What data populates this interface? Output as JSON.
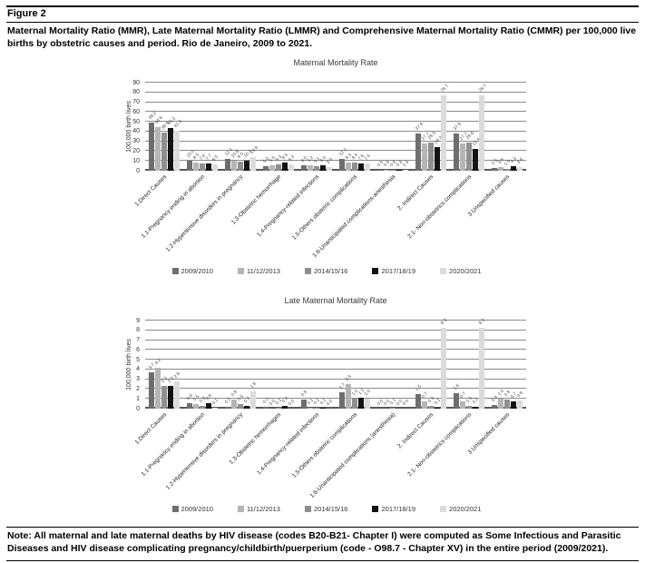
{
  "figure": {
    "label": "Figure 2",
    "caption": "Maternal Mortality Ratio (MMR), Late Maternal Mortality Ratio (LMMR) and Comprehensive Maternal Mortality Ratio (CMMR) per 100,000 live births by obstetric causes and period. Rio de Janeiro, 2009 to 2021.",
    "note": "Note: All maternal and late maternal deaths by HIV disease (codes B20-B21- Chapter I) were computed as Some Infectious and Parasitic Diseases and HIV disease complicating pregnancy/childbirth/puerperium (code - O98.7 - Chapter XV) in the entire period (2009/2021)."
  },
  "chart_data": [
    {
      "type": "bar",
      "title": "Maternal Mortality Rate",
      "ylabel": "100,000 birth lives",
      "ylim": [
        0,
        90
      ],
      "yticks": [
        0,
        10,
        20,
        30,
        40,
        50,
        60,
        70,
        80,
        90
      ],
      "grid": true,
      "legend_position": "bottom",
      "categories": [
        "1.Direct Causes",
        "1.1-Pregnancy ending in abortion",
        "1.2-Hypertensive disorders in pregnancy",
        "1.3-Obstetric hemorrhage",
        "1.4-Pregnancy-related infections",
        "1.5-Others obstetric complications",
        "1.6-Unanticipated complications-anesthesia",
        "2. Indirect Causes",
        "2.1- Non-obstetrics complications",
        "3.Unspecified causes"
      ],
      "series": [
        {
          "name": "2009/2010",
          "color": "#6e6e6e",
          "values": [
            49.2,
            10.0,
            12.1,
            5.0,
            6.0,
            12.1,
            0.5,
            37.8,
            37.8,
            2.5
          ]
        },
        {
          "name": "11/12/2013",
          "color": "#b5b5b5",
          "values": [
            44.6,
            8.5,
            10.6,
            5.5,
            5.2,
            8.3,
            0.9,
            27.7,
            27.7,
            3.6
          ]
        },
        {
          "name": "2014/15/16",
          "color": "#8f8f8f",
          "values": [
            38.9,
            7.4,
            9.5,
            6.3,
            5.1,
            8.4,
            0.9,
            28.5,
            28.6,
            1.5
          ]
        },
        {
          "name": "2017/18/19",
          "color": "#141414",
          "values": [
            43.3,
            7.7,
            10.2,
            8.5,
            6.0,
            7.6,
            0.3,
            24.3,
            21.9,
            4.3
          ]
        },
        {
          "name": "2020/2021",
          "color": "#dcdcdc",
          "values": [
            41.3,
            6.5,
            13.9,
            6.3,
            3.3,
            7.5,
            1.3,
            76.7,
            76.7,
            3.4
          ]
        }
      ]
    },
    {
      "type": "bar",
      "title": "Late Maternal Mortality Rate",
      "ylabel": "100,000 birth lives",
      "ylim": [
        0,
        9
      ],
      "yticks": [
        0,
        1,
        2,
        3,
        4,
        5,
        6,
        7,
        8,
        9
      ],
      "grid": true,
      "legend_position": "bottom",
      "categories": [
        "1.Direct Causes",
        "1.1-Pregnancy ending in abortion",
        "1.2-Hypertensive disorders in pregnancy",
        "1.3-Obstetric hemorrhages",
        "1.4-Pregnancy-related infections",
        "1.5-Others obstetric complications",
        "1.6-Unanticipated complications (anesthesia)",
        "2. Indirect Causes",
        "2.1- Non-obstetrics complications",
        "3.Unspecified causes"
      ],
      "series": [
        {
          "name": "2009/2010",
          "color": "#6e6e6e",
          "values": [
            3.7,
            0.6,
            0.2,
            0.2,
            0.9,
            1.7,
            0.0,
            1.5,
            1.6,
            0.4
          ]
        },
        {
          "name": "11/12/2013",
          "color": "#b5b5b5",
          "values": [
            4.2,
            0.5,
            0.9,
            0.0,
            0.1,
            2.5,
            0.0,
            0.7,
            0.7,
            1.0
          ]
        },
        {
          "name": "2014/15/16",
          "color": "#8f8f8f",
          "values": [
            2.3,
            0.3,
            0.5,
            0.1,
            0.1,
            1.0,
            0.1,
            0.3,
            0.3,
            0.9
          ]
        },
        {
          "name": "2017/18/19",
          "color": "#141414",
          "values": [
            2.3,
            0.6,
            0.3,
            0.3,
            0.1,
            1.1,
            0.0,
            0.1,
            0.2,
            0.7
          ]
        },
        {
          "name": "2020/2021",
          "color": "#dcdcdc",
          "values": [
            2.8,
            0.1,
            1.8,
            0.0,
            0.0,
            1.0,
            0.0,
            8.3,
            8.3,
            0.8
          ]
        }
      ]
    }
  ]
}
